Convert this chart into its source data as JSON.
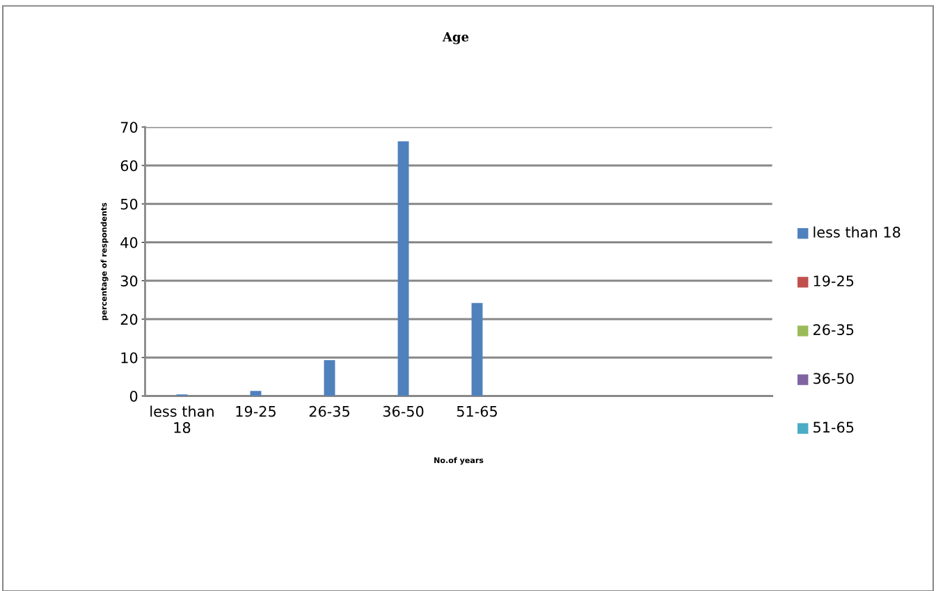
{
  "chart_data": {
    "type": "bar",
    "title": "Age",
    "xlabel": "No.of years",
    "ylabel": "percentage of respondents",
    "categories": [
      "less than 18",
      "19-25",
      "26-35",
      "36-50",
      "51-65"
    ],
    "series": [
      {
        "color": "#4f81bd",
        "values": [
          0.4,
          1.3,
          9.3,
          66.3,
          24.2
        ]
      }
    ],
    "colors": [
      "#4f81bd",
      "#c0504d",
      "#9bbb59",
      "#8064a2",
      "#4bacc6"
    ],
    "ylim": [
      0,
      70
    ],
    "yticks": [
      0,
      10,
      20,
      30,
      40,
      50,
      60,
      70
    ],
    "grid": "y"
  }
}
